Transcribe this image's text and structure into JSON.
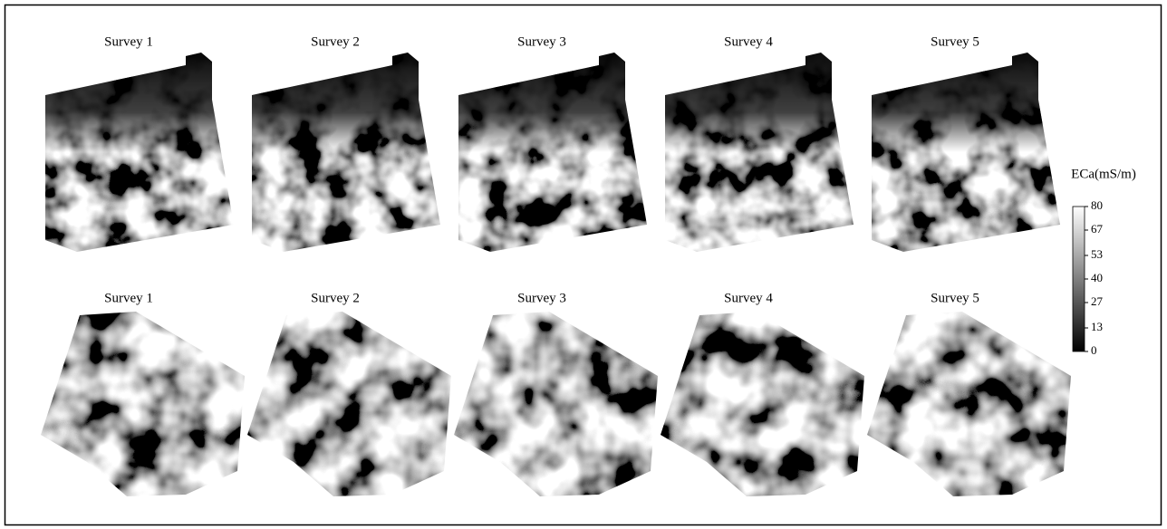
{
  "panels": {
    "top": [
      "Survey 1",
      "Survey 2",
      "Survey 3",
      "Survey 4",
      "Survey 5"
    ],
    "bottom": [
      "Survey 1",
      "Survey 2",
      "Survey 3",
      "Survey 4",
      "Survey 5"
    ]
  },
  "colorbar": {
    "label": "ECa(mS/m)",
    "lim": [
      0,
      80
    ],
    "ticks": [
      0,
      13,
      27,
      40,
      53,
      67,
      80
    ]
  }
}
